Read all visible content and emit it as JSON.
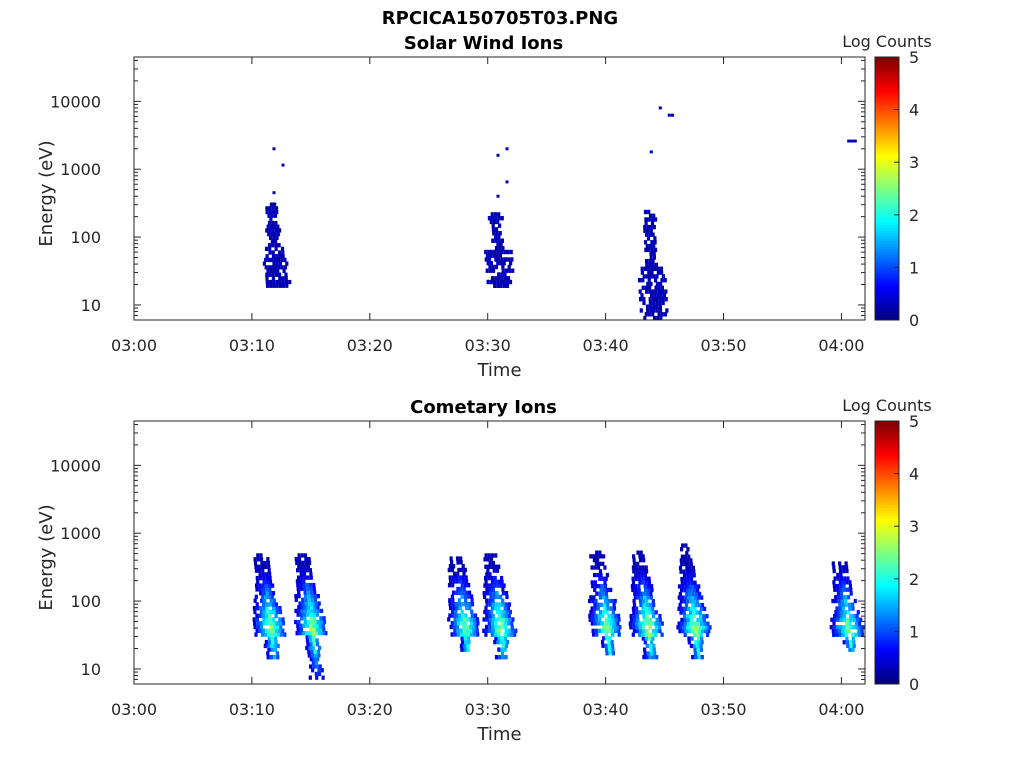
{
  "figure_title": "RPCICA150705T03.PNG",
  "chart_data": [
    {
      "type": "heatmap",
      "title": "Solar Wind Ions",
      "xlabel": "Time",
      "ylabel": "Energy (eV)",
      "x_ticks": [
        "03:00",
        "03:10",
        "03:20",
        "03:30",
        "03:40",
        "03:50",
        "04:00"
      ],
      "xlim": [
        "03:00",
        "04:02"
      ],
      "y_scale": "log",
      "y_ticks": [
        "10",
        "100",
        "1000",
        "10000"
      ],
      "ylim": [
        6,
        45000
      ],
      "colorbar": {
        "label": "Log Counts",
        "ticks": [
          "0",
          "1",
          "2",
          "3",
          "4",
          "5"
        ],
        "range": [
          0,
          5
        ],
        "colormap": "jet"
      },
      "bursts": [
        {
          "time": "03:12",
          "e_min": 18,
          "e_max": 320,
          "peak_log_counts": 0.3,
          "sparse_above": [
            450,
            1150,
            2000
          ]
        },
        {
          "time": "03:31",
          "e_min": 18,
          "e_max": 230,
          "peak_log_counts": 0.3,
          "sparse_above": [
            400,
            650,
            1600,
            2000
          ]
        },
        {
          "time": "03:44",
          "e_min": 6,
          "e_max": 250,
          "peak_log_counts": 0.3,
          "sparse_above": [
            1800,
            8000
          ]
        },
        {
          "time": "03:45.5",
          "e_min": 6000,
          "e_max": 6500,
          "peak_log_counts": 0.3
        },
        {
          "time": "04:01",
          "e_min": 2500,
          "e_max": 2700,
          "peak_log_counts": 0.3
        }
      ]
    },
    {
      "type": "heatmap",
      "title": "Cometary Ions",
      "xlabel": "Time",
      "ylabel": "Energy (eV)",
      "x_ticks": [
        "03:00",
        "03:10",
        "03:20",
        "03:30",
        "03:40",
        "03:50",
        "04:00"
      ],
      "xlim": [
        "03:00",
        "04:02"
      ],
      "y_scale": "log",
      "y_ticks": [
        "10",
        "100",
        "1000",
        "10000"
      ],
      "ylim": [
        6,
        45000
      ],
      "colorbar": {
        "label": "Log Counts",
        "ticks": [
          "0",
          "1",
          "2",
          "3",
          "4",
          "5"
        ],
        "range": [
          0,
          5
        ],
        "colormap": "jet"
      },
      "bursts": [
        {
          "time": "03:11.5",
          "e_min": 14,
          "e_max": 500,
          "peak_log_counts": 2.6
        },
        {
          "time": "03:15",
          "e_min": 7,
          "e_max": 500,
          "peak_log_counts": 2.6
        },
        {
          "time": "03:28",
          "e_min": 18,
          "e_max": 450,
          "peak_log_counts": 2.4
        },
        {
          "time": "03:31",
          "e_min": 14,
          "e_max": 500,
          "peak_log_counts": 2.6
        },
        {
          "time": "03:40",
          "e_min": 16,
          "e_max": 550,
          "peak_log_counts": 2.5
        },
        {
          "time": "03:43.5",
          "e_min": 14,
          "e_max": 550,
          "peak_log_counts": 2.6
        },
        {
          "time": "03:47.5",
          "e_min": 14,
          "e_max": 700,
          "peak_log_counts": 2.6
        },
        {
          "time": "04:00.5",
          "e_min": 18,
          "e_max": 380,
          "peak_log_counts": 2.4
        }
      ]
    }
  ]
}
